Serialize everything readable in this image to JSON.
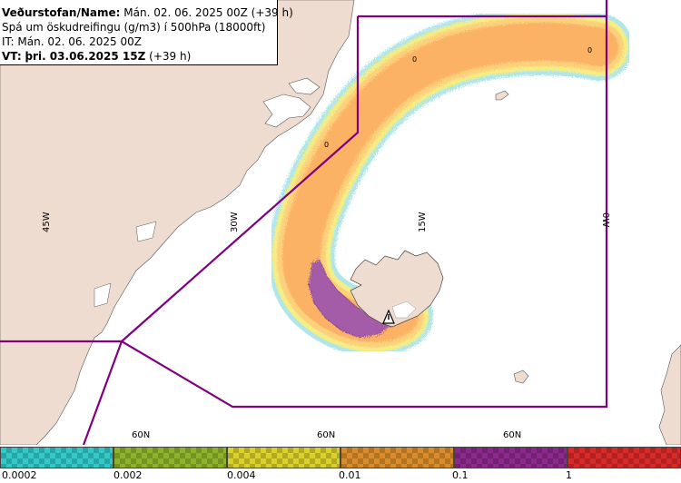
{
  "info": {
    "title_label": "Veðurstofan/Name:",
    "title_value": "Mán. 02. 06. 2025 00Z (+39 h)",
    "forecast_line": "Spá um öskudreifingu (g/m3) í 500hPa (18000ft)",
    "it_line": "IT: Mán. 02. 06. 2025 00Z",
    "vt_label": "VT:",
    "vt_value": "þri. 03.06.2025 15Z",
    "vt_suffix": "(+39 h)"
  },
  "graticule": {
    "lon_labels": [
      "45W",
      "30W",
      "15W",
      "0W"
    ],
    "lat_labels": [
      "60N",
      "60N",
      "60N"
    ]
  },
  "contour_zero_labels": [
    "0",
    "0",
    "0"
  ],
  "legend": {
    "labels": [
      "0.0002",
      "0.002",
      "0.004",
      "0.01",
      "0.1",
      "1"
    ],
    "colors": [
      "#33c9c9",
      "#8db32a",
      "#d9d02a",
      "#d98c2a",
      "#8c2a8c",
      "#d92a2a"
    ]
  },
  "colors": {
    "land": "#efdcd0",
    "sea": "#ffffff",
    "boundary": "#800080",
    "ash_low": "#fbb265",
    "ash_mid": "#fdd07b",
    "ash_high": "#a55ba8",
    "ash_edge_cyan": "#9de0e6",
    "ash_edge_yellow": "#f4ee85"
  },
  "volcano_icon": "volcano-warning-triangle-icon"
}
